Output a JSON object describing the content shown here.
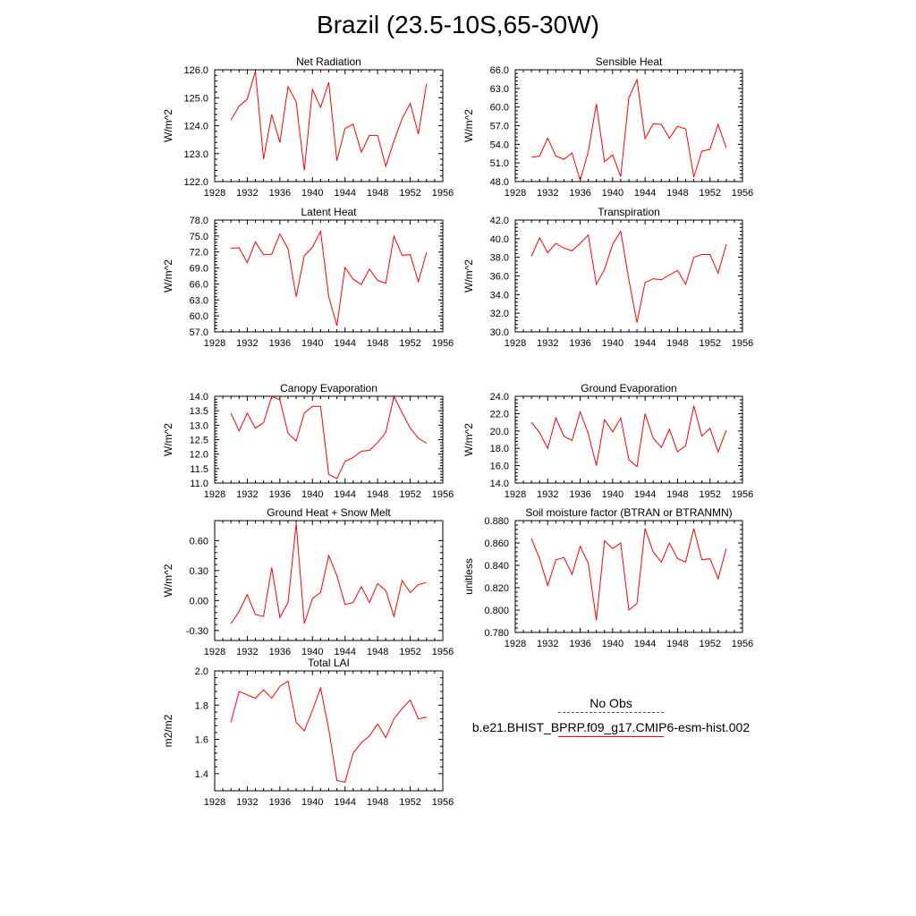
{
  "title": "Brazil (23.5-10S,65-30W)",
  "legend": {
    "obs_label": "No Obs",
    "model_label": "b.e21.BHIST_BPRP.f09_g17.CMIP6-esm-hist.002",
    "model_color": "#ff0000"
  },
  "chart_data": [
    {
      "type": "line",
      "title": "Net Radiation",
      "ylabel": "W/m^2",
      "xlim": [
        1928,
        1956
      ],
      "ylim": [
        122,
        126
      ],
      "xticks": [
        "1928",
        "1932",
        "1936",
        "1940",
        "1944",
        "1948",
        "1952",
        "1956"
      ],
      "yticks": [
        "122.0",
        "123.0",
        "124.0",
        "125.0",
        "126.0"
      ],
      "x": [
        1930,
        1931,
        1932,
        1933,
        1934,
        1935,
        1936,
        1937,
        1938,
        1939,
        1940,
        1941,
        1942,
        1943,
        1944,
        1945,
        1946,
        1947,
        1948,
        1949,
        1950,
        1951,
        1952,
        1953,
        1954
      ],
      "series": [
        {
          "values": [
            124.2,
            124.7,
            124.95,
            125.95,
            122.8,
            124.4,
            123.4,
            125.4,
            124.85,
            122.4,
            125.3,
            124.65,
            125.55,
            122.75,
            123.9,
            124.05,
            123.05,
            123.65,
            123.65,
            122.55,
            123.45,
            124.25,
            124.8,
            123.7,
            125.5
          ]
        }
      ]
    },
    {
      "type": "line",
      "title": "Sensible Heat",
      "ylabel": "W/m^2",
      "xlim": [
        1928,
        1956
      ],
      "ylim": [
        48,
        66
      ],
      "xticks": [
        "1928",
        "1932",
        "1936",
        "1940",
        "1944",
        "1948",
        "1952",
        "1956"
      ],
      "yticks": [
        "48.0",
        "51.0",
        "54.0",
        "57.0",
        "60.0",
        "63.0",
        "66.0"
      ],
      "x": [
        1930,
        1931,
        1932,
        1933,
        1934,
        1935,
        1936,
        1937,
        1938,
        1939,
        1940,
        1941,
        1942,
        1943,
        1944,
        1945,
        1946,
        1947,
        1948,
        1949,
        1950,
        1951,
        1952,
        1953,
        1954
      ],
      "series": [
        {
          "values": [
            51.9,
            52.1,
            55.0,
            52.1,
            51.6,
            52.6,
            48.2,
            52.8,
            60.5,
            51.2,
            52.3,
            48.8,
            61.5,
            64.4,
            54.9,
            57.3,
            57.2,
            55.0,
            56.9,
            56.5,
            48.7,
            52.9,
            53.2,
            57.2,
            53.4
          ]
        }
      ]
    },
    {
      "type": "line",
      "title": "Latent Heat",
      "ylabel": "W/m^2",
      "xlim": [
        1928,
        1956
      ],
      "ylim": [
        57,
        78
      ],
      "xticks": [
        "1928",
        "1932",
        "1936",
        "1940",
        "1944",
        "1948",
        "1952",
        "1956"
      ],
      "yticks": [
        "57.0",
        "60.0",
        "63.0",
        "66.0",
        "69.0",
        "72.0",
        "75.0",
        "78.0"
      ],
      "x": [
        1930,
        1931,
        1932,
        1933,
        1934,
        1935,
        1936,
        1937,
        1938,
        1939,
        1940,
        1941,
        1942,
        1943,
        1944,
        1945,
        1946,
        1947,
        1948,
        1949,
        1950,
        1951,
        1952,
        1953,
        1954
      ],
      "series": [
        {
          "values": [
            72.7,
            72.8,
            70.0,
            73.9,
            71.5,
            71.6,
            75.4,
            72.6,
            63.6,
            71.3,
            72.9,
            75.9,
            63.6,
            58.2,
            69.1,
            66.9,
            65.9,
            68.8,
            66.7,
            66.1,
            75.0,
            71.4,
            71.5,
            66.4,
            71.9
          ]
        }
      ]
    },
    {
      "type": "line",
      "title": "Transpiration",
      "ylabel": "W/m^2",
      "xlim": [
        1928,
        1956
      ],
      "ylim": [
        30,
        42
      ],
      "xticks": [
        "1928",
        "1932",
        "1936",
        "1940",
        "1944",
        "1948",
        "1952",
        "1956"
      ],
      "yticks": [
        "30.0",
        "32.0",
        "34.0",
        "36.0",
        "38.0",
        "40.0",
        "42.0"
      ],
      "x": [
        1930,
        1931,
        1932,
        1933,
        1934,
        1935,
        1936,
        1937,
        1938,
        1939,
        1940,
        1941,
        1942,
        1943,
        1944,
        1945,
        1946,
        1947,
        1948,
        1949,
        1950,
        1951,
        1952,
        1953,
        1954
      ],
      "series": [
        {
          "values": [
            38.1,
            40.1,
            38.5,
            39.5,
            39.0,
            38.7,
            39.5,
            40.4,
            35.1,
            36.7,
            39.4,
            40.8,
            35.6,
            31.0,
            35.3,
            35.7,
            35.6,
            36.1,
            36.6,
            35.1,
            38.0,
            38.3,
            38.3,
            36.3,
            39.4
          ]
        }
      ]
    },
    {
      "type": "line",
      "title": "Canopy Evaporation",
      "ylabel": "W/m^2",
      "xlim": [
        1928,
        1956
      ],
      "ylim": [
        11,
        14
      ],
      "xticks": [
        "1928",
        "1932",
        "1936",
        "1940",
        "1944",
        "1948",
        "1952",
        "1956"
      ],
      "yticks": [
        "11.0",
        "11.5",
        "12.0",
        "12.5",
        "13.0",
        "13.5",
        "14.0"
      ],
      "x": [
        1930,
        1931,
        1932,
        1933,
        1934,
        1935,
        1936,
        1937,
        1938,
        1939,
        1940,
        1941,
        1942,
        1943,
        1944,
        1945,
        1946,
        1947,
        1948,
        1949,
        1950,
        1951,
        1952,
        1953,
        1954
      ],
      "series": [
        {
          "values": [
            13.42,
            12.8,
            13.42,
            12.9,
            13.08,
            14.0,
            13.88,
            12.72,
            12.45,
            13.42,
            13.65,
            13.65,
            11.3,
            11.15,
            11.75,
            11.88,
            12.1,
            12.13,
            12.4,
            12.75,
            14.0,
            13.43,
            12.9,
            12.55,
            12.38
          ]
        }
      ]
    },
    {
      "type": "line",
      "title": "Ground Evaporation",
      "ylabel": "W/m^2",
      "xlim": [
        1928,
        1956
      ],
      "ylim": [
        14,
        24
      ],
      "xticks": [
        "1928",
        "1932",
        "1936",
        "1940",
        "1944",
        "1948",
        "1952",
        "1956"
      ],
      "yticks": [
        "14.0",
        "16.0",
        "18.0",
        "20.0",
        "22.0",
        "24.0"
      ],
      "x": [
        1930,
        1931,
        1932,
        1933,
        1934,
        1935,
        1936,
        1937,
        1938,
        1939,
        1940,
        1941,
        1942,
        1943,
        1944,
        1945,
        1946,
        1947,
        1948,
        1949,
        1950,
        1951,
        1952,
        1953,
        1954
      ],
      "series": [
        {
          "values": [
            21.0,
            19.8,
            18.0,
            21.5,
            19.4,
            18.9,
            22.2,
            19.7,
            16.0,
            21.3,
            19.9,
            21.5,
            16.7,
            15.9,
            22.0,
            19.2,
            18.1,
            20.2,
            17.6,
            18.3,
            22.9,
            19.4,
            20.3,
            17.6,
            20.1
          ]
        }
      ]
    },
    {
      "type": "line",
      "title": "Ground Heat + Snow Melt",
      "ylabel": "W/m^2",
      "xlim": [
        1928,
        1956
      ],
      "ylim": [
        -0.4,
        0.8
      ],
      "xticks": [
        "1928",
        "1932",
        "1936",
        "1940",
        "1944",
        "1948",
        "1952",
        "1956"
      ],
      "yticks": [
        "-0.30",
        "0.00",
        "0.30",
        "0.60"
      ],
      "ytick_values": [
        -0.3,
        0.0,
        0.3,
        0.6
      ],
      "x": [
        1930,
        1931,
        1932,
        1933,
        1934,
        1935,
        1936,
        1937,
        1938,
        1939,
        1940,
        1941,
        1942,
        1943,
        1944,
        1945,
        1946,
        1947,
        1948,
        1949,
        1950,
        1951,
        1952,
        1953,
        1954
      ],
      "series": [
        {
          "values": [
            -0.23,
            -0.11,
            0.06,
            -0.14,
            -0.16,
            0.33,
            -0.17,
            -0.02,
            0.77,
            -0.23,
            0.02,
            0.08,
            0.45,
            0.25,
            -0.04,
            -0.02,
            0.14,
            -0.02,
            0.17,
            0.1,
            -0.16,
            0.2,
            0.08,
            0.16,
            0.18
          ]
        }
      ]
    },
    {
      "type": "line",
      "title": "Soil moisture factor (BTRAN or BTRANMN)",
      "ylabel": "unitless",
      "xlim": [
        1928,
        1956
      ],
      "ylim": [
        0.78,
        0.88
      ],
      "xticks": [
        "1928",
        "1932",
        "1936",
        "1940",
        "1944",
        "1948",
        "1952",
        "1956"
      ],
      "yticks": [
        "0.780",
        "0.800",
        "0.820",
        "0.840",
        "0.860",
        "0.880"
      ],
      "x": [
        1930,
        1931,
        1932,
        1933,
        1934,
        1935,
        1936,
        1937,
        1938,
        1939,
        1940,
        1941,
        1942,
        1943,
        1944,
        1945,
        1946,
        1947,
        1948,
        1949,
        1950,
        1951,
        1952,
        1953,
        1954
      ],
      "series": [
        {
          "values": [
            0.864,
            0.846,
            0.822,
            0.845,
            0.847,
            0.832,
            0.857,
            0.842,
            0.791,
            0.862,
            0.855,
            0.86,
            0.8,
            0.806,
            0.873,
            0.852,
            0.843,
            0.86,
            0.846,
            0.843,
            0.873,
            0.845,
            0.846,
            0.828,
            0.855
          ]
        }
      ]
    },
    {
      "type": "line",
      "title": "Total LAI",
      "ylabel": "m2/m2",
      "xlim": [
        1928,
        1956
      ],
      "ylim": [
        1.3,
        2.0
      ],
      "xticks": [
        "1928",
        "1932",
        "1936",
        "1940",
        "1944",
        "1948",
        "1952",
        "1956"
      ],
      "yticks": [
        "1.4",
        "1.6",
        "1.8",
        "2.0"
      ],
      "ytick_values": [
        1.4,
        1.6,
        1.8,
        2.0
      ],
      "x": [
        1930,
        1931,
        1932,
        1933,
        1934,
        1935,
        1936,
        1937,
        1938,
        1939,
        1940,
        1941,
        1942,
        1943,
        1944,
        1945,
        1946,
        1947,
        1948,
        1949,
        1950,
        1951,
        1952,
        1953,
        1954
      ],
      "series": [
        {
          "values": [
            1.7,
            1.88,
            1.86,
            1.84,
            1.89,
            1.84,
            1.91,
            1.94,
            1.7,
            1.65,
            1.77,
            1.9,
            1.66,
            1.36,
            1.35,
            1.52,
            1.58,
            1.62,
            1.69,
            1.61,
            1.72,
            1.78,
            1.83,
            1.72,
            1.73
          ]
        }
      ]
    }
  ]
}
